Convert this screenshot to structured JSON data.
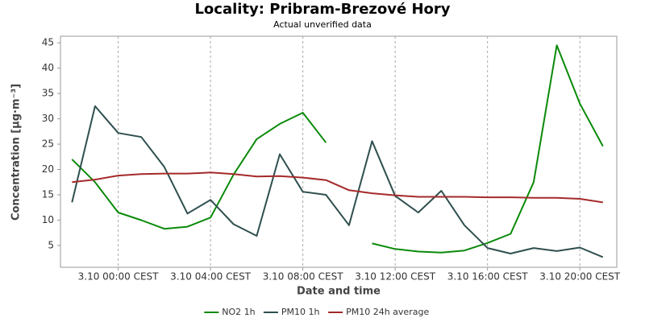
{
  "chart_data": {
    "type": "line",
    "title": "Locality: Pribram-Brezové Hory",
    "subtitle": "Actual unverified data",
    "x_label": "Date and time",
    "y_label": "Concentration [µg·m⁻³]",
    "x": [
      -2,
      -1,
      0,
      1,
      2,
      3,
      4,
      5,
      6,
      7,
      8,
      9,
      10,
      11,
      12,
      13,
      14,
      15,
      16,
      17,
      18,
      19,
      20,
      21
    ],
    "xlim": [
      -2.5,
      21.6
    ],
    "xticks": [
      {
        "value": 0,
        "label": "3.10 00:00 CEST"
      },
      {
        "value": 4,
        "label": "3.10 04:00 CEST"
      },
      {
        "value": 8,
        "label": "3.10 08:00 CEST"
      },
      {
        "value": 12,
        "label": "3.10 12:00 CEST"
      },
      {
        "value": 16,
        "label": "3.10 16:00 CEST"
      },
      {
        "value": 20,
        "label": "3.10 20:00 CEST"
      }
    ],
    "ylim": [
      0.7,
      46.3
    ],
    "yticks": [
      5,
      10,
      15,
      20,
      25,
      30,
      35,
      40,
      45
    ],
    "grid": "x",
    "legend": "bottom",
    "series": [
      {
        "name": "NO2 1h",
        "color": "#0a8a0a",
        "values": [
          22,
          17.5,
          11.5,
          10,
          8.3,
          8.7,
          10.5,
          19,
          26,
          29,
          31.2,
          25.3,
          null,
          5.4,
          4.3,
          3.8,
          3.6,
          4,
          5.5,
          7.3,
          17.5,
          44.5,
          33,
          24.6
        ]
      },
      {
        "name": "PM10 1h",
        "color": "#2f4f4f",
        "values": [
          13.5,
          32.5,
          27.2,
          26.4,
          20.5,
          11.3,
          14,
          9.2,
          6.9,
          23,
          15.6,
          15,
          9,
          25.6,
          14.8,
          11.5,
          15.8,
          9,
          4.5,
          3.4,
          4.5,
          3.9,
          4.6,
          2.7
        ]
      },
      {
        "name": "PM10 24h average",
        "color": "#a52a2a",
        "values": [
          17.5,
          18,
          18.8,
          19.1,
          19.2,
          19.2,
          19.4,
          19.1,
          18.6,
          18.7,
          18.4,
          17.9,
          15.9,
          15.3,
          14.9,
          14.6,
          14.6,
          14.6,
          14.5,
          14.5,
          14.4,
          14.4,
          14.2,
          13.5
        ]
      }
    ]
  }
}
